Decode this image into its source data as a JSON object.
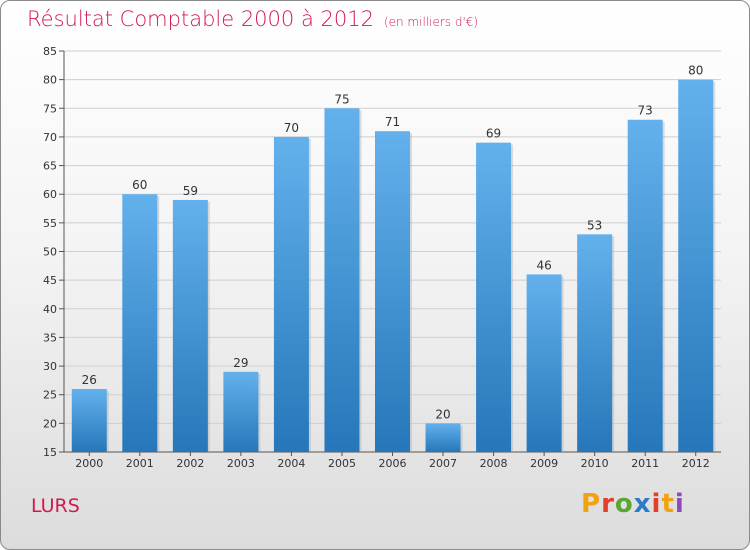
{
  "colors": {
    "bar_light": "#63b1ec",
    "bar_dark": "#2677ba",
    "accent": "#d01a4f",
    "grid": "#cfcfcf",
    "axis": "#555555",
    "logo": [
      "#f2a10f",
      "#e33d2c",
      "#5aa631",
      "#2b7bc9",
      "#e33d2c",
      "#f2a10f",
      "#8c4bb5"
    ]
  },
  "header": {
    "title": "Résultat Comptable 2000 à 2012",
    "subtitle": "(en milliers d'€)"
  },
  "location": "LURS",
  "logo": {
    "text": "Proxiti"
  },
  "chart_data": {
    "type": "bar",
    "title": "Résultat Comptable 2000 à 2012",
    "subtitle": "(en milliers d'€)",
    "xlabel": "",
    "ylabel": "",
    "categories": [
      "2000",
      "2001",
      "2002",
      "2003",
      "2004",
      "2005",
      "2006",
      "2007",
      "2008",
      "2009",
      "2010",
      "2011",
      "2012"
    ],
    "values": [
      26,
      60,
      59,
      29,
      70,
      75,
      71,
      20,
      69,
      46,
      53,
      73,
      80
    ],
    "ylim": [
      15,
      85
    ],
    "yticks": [
      15,
      20,
      25,
      30,
      35,
      40,
      45,
      50,
      55,
      60,
      65,
      70,
      75,
      80,
      85
    ],
    "grid": true,
    "legend": "none"
  }
}
